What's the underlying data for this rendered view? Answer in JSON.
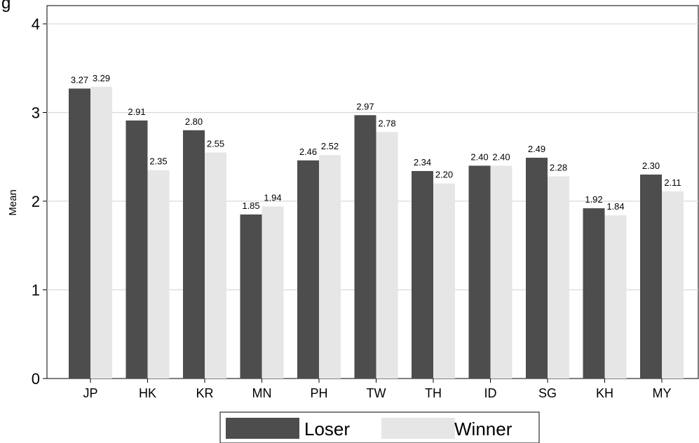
{
  "chart_data": {
    "type": "bar",
    "title_fragment": "g",
    "ylabel": "Mean",
    "xlabel": "",
    "ylim": [
      0,
      4
    ],
    "yticks": [
      0,
      1,
      2,
      3,
      4
    ],
    "grid": true,
    "legend_position": "bottom",
    "categories": [
      "JP",
      "HK",
      "KR",
      "MN",
      "PH",
      "TW",
      "TH",
      "ID",
      "SG",
      "KH",
      "MY"
    ],
    "series": [
      {
        "name": "Loser",
        "color": "#4d4d4d",
        "values": [
          3.27,
          2.91,
          2.8,
          1.85,
          2.46,
          2.97,
          2.34,
          2.4,
          2.49,
          1.92,
          2.3
        ]
      },
      {
        "name": "Winner",
        "color": "#e6e6e6",
        "values": [
          3.29,
          2.35,
          2.55,
          1.94,
          2.52,
          2.78,
          2.2,
          2.4,
          2.28,
          1.84,
          2.11
        ]
      }
    ]
  }
}
